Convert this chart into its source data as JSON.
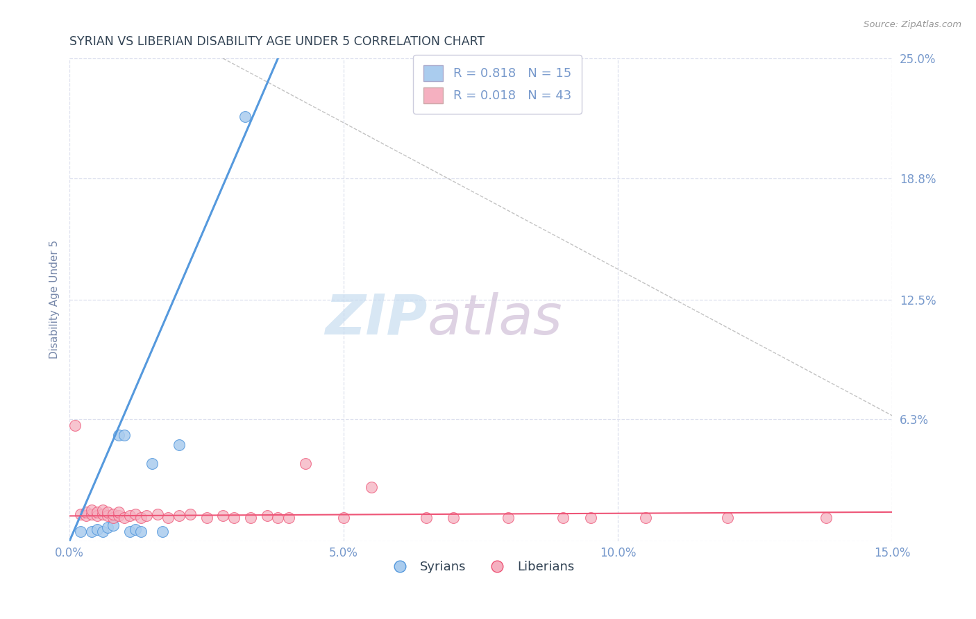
{
  "title": "SYRIAN VS LIBERIAN DISABILITY AGE UNDER 5 CORRELATION CHART",
  "source": "Source: ZipAtlas.com",
  "xlabel": "",
  "ylabel": "Disability Age Under 5",
  "xlim": [
    0.0,
    0.15
  ],
  "ylim": [
    0.0,
    0.25
  ],
  "xticks": [
    0.0,
    0.05,
    0.1,
    0.15
  ],
  "xticklabels": [
    "0.0%",
    "5.0%",
    "10.0%",
    "15.0%"
  ],
  "yticks": [
    0.0,
    0.063,
    0.125,
    0.188,
    0.25
  ],
  "yticklabels": [
    "",
    "6.3%",
    "12.5%",
    "18.8%",
    "25.0%"
  ],
  "syrian_R": 0.818,
  "syrian_N": 15,
  "liberian_R": 0.018,
  "liberian_N": 43,
  "syrian_color": "#aaccee",
  "liberian_color": "#f5b0c0",
  "syrian_line_color": "#5599dd",
  "liberian_line_color": "#ee5577",
  "legend_syrian_label": "Syrians",
  "legend_liberian_label": "Liberians",
  "background_color": "#ffffff",
  "grid_color": "#dde0ee",
  "title_color": "#334455",
  "axis_label_color": "#7788aa",
  "tick_color": "#7799cc",
  "watermark_zip_color": "#c8ddf0",
  "watermark_atlas_color": "#d0c0d8",
  "syrian_x": [
    0.002,
    0.004,
    0.005,
    0.006,
    0.007,
    0.008,
    0.009,
    0.01,
    0.011,
    0.012,
    0.013,
    0.015,
    0.017,
    0.02,
    0.032
  ],
  "syrian_y": [
    0.005,
    0.005,
    0.006,
    0.005,
    0.007,
    0.008,
    0.055,
    0.055,
    0.005,
    0.006,
    0.005,
    0.04,
    0.005,
    0.05,
    0.22
  ],
  "liberian_x": [
    0.001,
    0.002,
    0.003,
    0.003,
    0.004,
    0.004,
    0.005,
    0.005,
    0.006,
    0.006,
    0.007,
    0.007,
    0.008,
    0.008,
    0.009,
    0.009,
    0.01,
    0.011,
    0.012,
    0.013,
    0.014,
    0.016,
    0.018,
    0.02,
    0.022,
    0.025,
    0.028,
    0.03,
    0.033,
    0.036,
    0.038,
    0.04,
    0.043,
    0.05,
    0.055,
    0.065,
    0.07,
    0.08,
    0.09,
    0.095,
    0.105,
    0.12,
    0.138
  ],
  "liberian_y": [
    0.06,
    0.014,
    0.013,
    0.015,
    0.014,
    0.016,
    0.013,
    0.015,
    0.014,
    0.016,
    0.013,
    0.015,
    0.012,
    0.014,
    0.013,
    0.015,
    0.012,
    0.013,
    0.014,
    0.012,
    0.013,
    0.014,
    0.012,
    0.013,
    0.014,
    0.012,
    0.013,
    0.012,
    0.012,
    0.013,
    0.012,
    0.012,
    0.04,
    0.012,
    0.028,
    0.012,
    0.012,
    0.012,
    0.012,
    0.012,
    0.012,
    0.012,
    0.012
  ],
  "syrian_line_x": [
    0.0,
    0.038
  ],
  "syrian_line_y": [
    0.0,
    0.25
  ],
  "liberian_line_x": [
    0.0,
    0.15
  ],
  "liberian_line_y": [
    0.013,
    0.015
  ],
  "ref_line_x": [
    0.028,
    0.15
  ],
  "ref_line_y": [
    0.25,
    0.065
  ]
}
